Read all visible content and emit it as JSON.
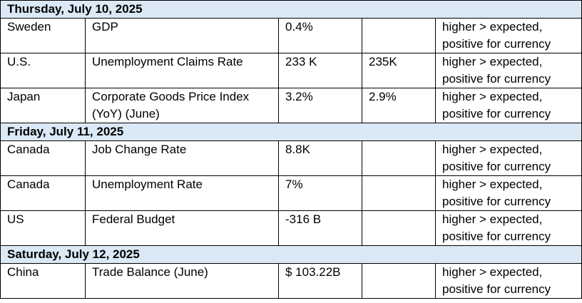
{
  "sections": [
    {
      "date": "Thursday, July 10, 2025",
      "rows": [
        {
          "country": "Sweden",
          "indicator": "GDP",
          "actual": "0.4%",
          "forecast": "",
          "impact_line1": "higher > expected,",
          "impact_line2": "positive for currency"
        },
        {
          "country": "U.S.",
          "indicator": "Unemployment Claims Rate",
          "actual": "233 K",
          "forecast": "235K",
          "impact_line1": "higher > expected,",
          "impact_line2": "positive for currency"
        },
        {
          "country": "Japan",
          "indicator": "Corporate Goods Price Index (YoY) (June)",
          "actual": "3.2%",
          "forecast": "2.9%",
          "impact_line1": "higher > expected,",
          "impact_line2": "positive for currency"
        }
      ]
    },
    {
      "date": "Friday, July 11, 2025",
      "rows": [
        {
          "country": "Canada",
          "indicator": "Job Change Rate",
          "actual": "8.8K",
          "forecast": "",
          "impact_line1": "higher > expected,",
          "impact_line2": "positive for currency"
        },
        {
          "country": "Canada",
          "indicator": "Unemployment Rate",
          "actual": "7%",
          "forecast": "",
          "impact_line1": "higher > expected,",
          "impact_line2": "positive for currency"
        },
        {
          "country": "US",
          "indicator": "Federal Budget",
          "actual": "-316 B",
          "forecast": "",
          "impact_line1": "higher > expected,",
          "impact_line2": "positive for currency"
        }
      ]
    },
    {
      "date": "Saturday, July 12, 2025",
      "rows": [
        {
          "country": "China",
          "indicator": "Trade Balance (June)",
          "actual": "$ 103.22B",
          "forecast": "",
          "impact_line1": "higher > expected,",
          "impact_line2": "positive for currency"
        }
      ]
    }
  ],
  "colors": {
    "date_row_bg": "#dbe9f7",
    "border": "#000000"
  }
}
